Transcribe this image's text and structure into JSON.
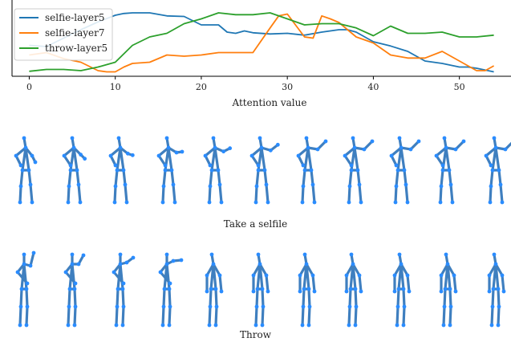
{
  "chart_data": {
    "type": "line",
    "xlabel": "Attention value",
    "ylabel": "",
    "xlim": [
      -2,
      56
    ],
    "ylim": [
      0,
      1
    ],
    "xticks": [
      0,
      10,
      20,
      30,
      40,
      50
    ],
    "grid": false,
    "legend_placement": "top-left",
    "series": [
      {
        "name": "selfie-layer5",
        "color": "#1f77b4",
        "x": [
          0,
          2,
          4,
          6,
          8,
          10,
          11,
          12,
          14,
          16,
          18,
          20,
          22,
          23,
          24,
          25,
          26,
          28,
          30,
          32,
          34,
          36,
          37,
          38,
          40,
          42,
          44,
          46,
          48,
          50,
          51,
          52,
          54
        ],
        "y": [
          0.46,
          0.44,
          0.58,
          0.72,
          0.85,
          0.96,
          0.99,
          1.0,
          1.0,
          0.95,
          0.94,
          0.8,
          0.8,
          0.68,
          0.66,
          0.7,
          0.67,
          0.65,
          0.66,
          0.63,
          0.68,
          0.72,
          0.72,
          0.68,
          0.52,
          0.45,
          0.36,
          0.2,
          0.16,
          0.1,
          0.1,
          0.08,
          0.02
        ]
      },
      {
        "name": "selfie-layer7",
        "color": "#ff7f0e",
        "x": [
          0,
          2,
          4,
          6,
          8,
          9,
          10,
          11,
          12,
          14,
          16,
          18,
          20,
          22,
          24,
          26,
          28,
          29,
          30,
          32,
          33,
          34,
          35,
          36,
          38,
          40,
          42,
          44,
          46,
          48,
          50,
          52,
          53,
          54
        ],
        "y": [
          0.3,
          0.34,
          0.24,
          0.18,
          0.04,
          0.02,
          0.02,
          0.1,
          0.16,
          0.18,
          0.3,
          0.28,
          0.3,
          0.34,
          0.34,
          0.34,
          0.75,
          0.95,
          0.98,
          0.6,
          0.58,
          0.95,
          0.9,
          0.84,
          0.6,
          0.5,
          0.3,
          0.25,
          0.25,
          0.36,
          0.2,
          0.04,
          0.04,
          0.12
        ]
      },
      {
        "name": "throw-layer5",
        "color": "#2ca02c",
        "x": [
          0,
          2,
          4,
          6,
          8,
          10,
          12,
          14,
          16,
          18,
          20,
          22,
          24,
          26,
          28,
          30,
          32,
          34,
          36,
          38,
          40,
          42,
          44,
          46,
          48,
          50,
          52,
          54
        ],
        "y": [
          0.03,
          0.06,
          0.06,
          0.04,
          0.1,
          0.18,
          0.46,
          0.6,
          0.66,
          0.82,
          0.9,
          1.0,
          0.97,
          0.97,
          1.0,
          0.9,
          0.8,
          0.82,
          0.82,
          0.75,
          0.62,
          0.78,
          0.66,
          0.66,
          0.68,
          0.6,
          0.6,
          0.63
        ]
      }
    ]
  },
  "captions": {
    "selfie": "Take a selfile",
    "throw": "Throw"
  },
  "figure": {
    "skeleton_color": "#3f7fbf",
    "joint_color": "#2a8cff"
  }
}
